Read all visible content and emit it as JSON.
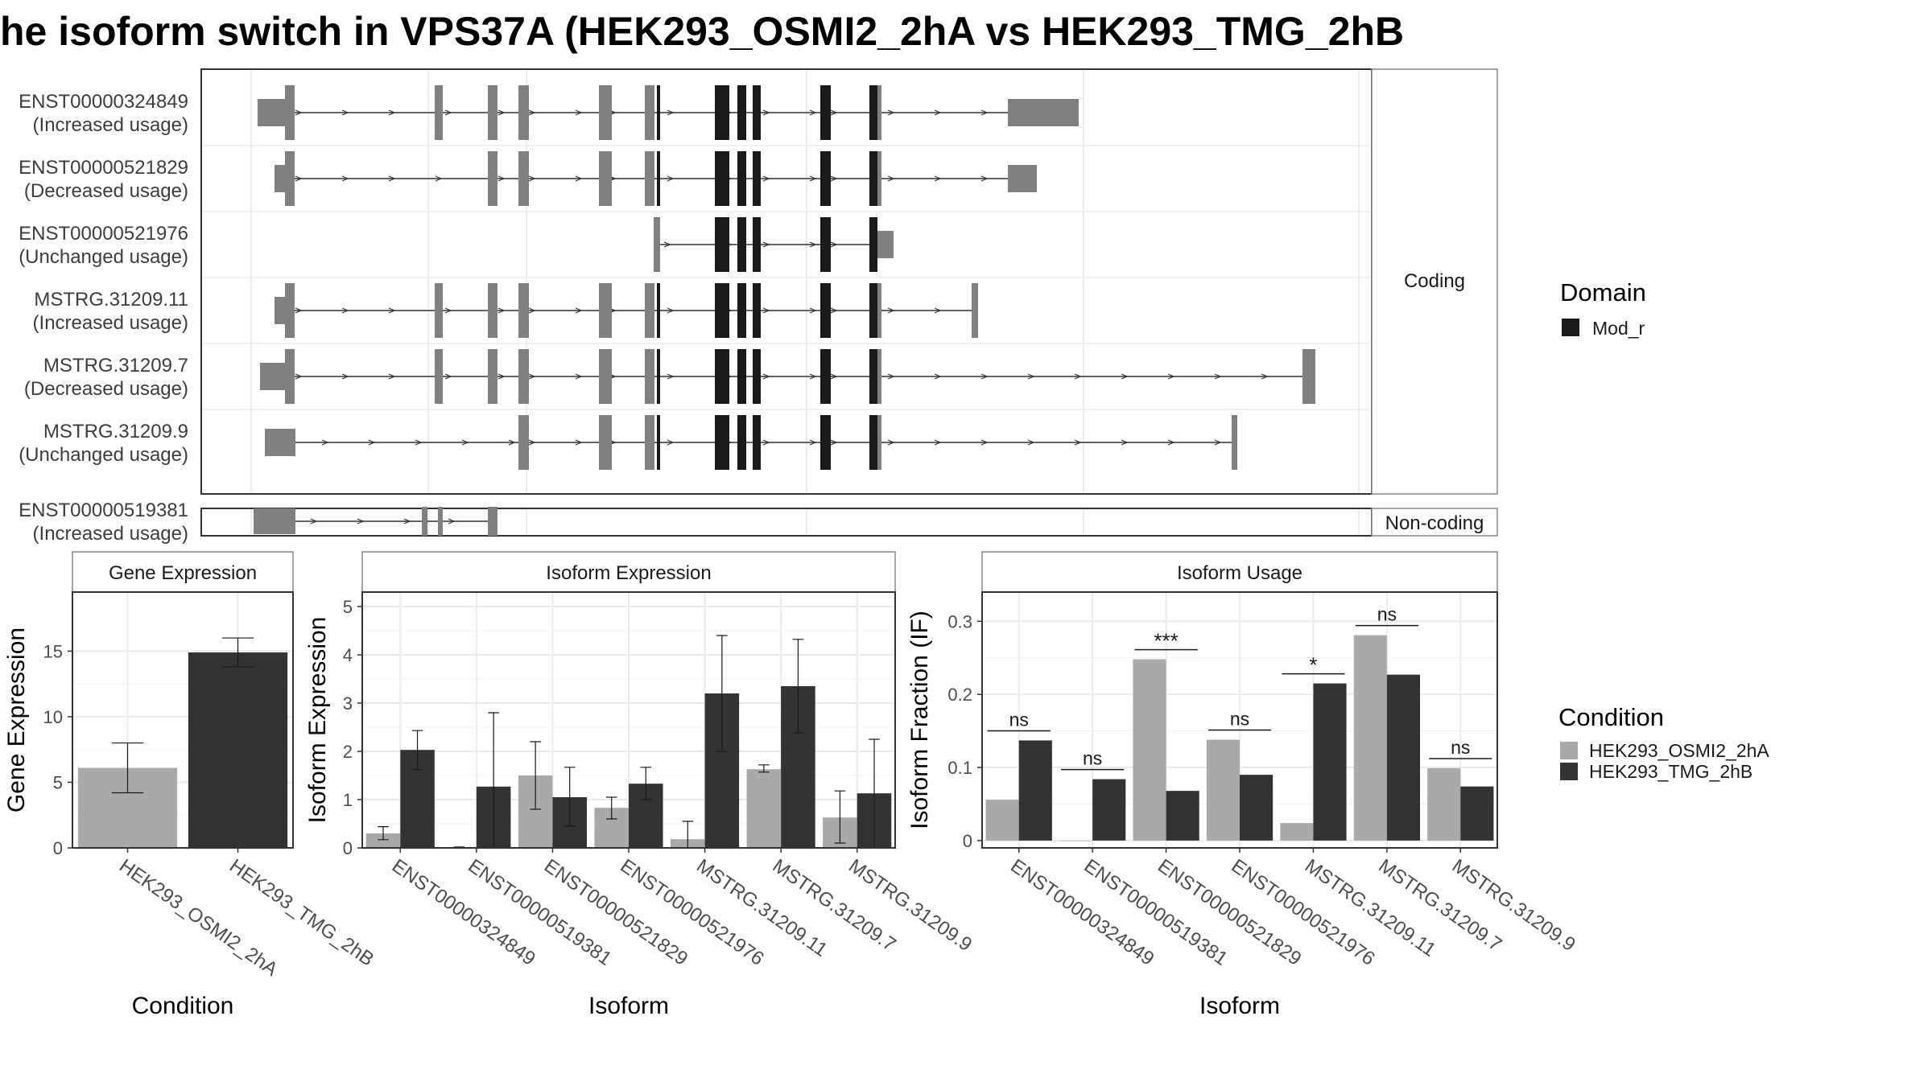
{
  "title": "he isoform switch in VPS37A (HEK293_OSMI2_2hA vs HEK293_TMG_2hB",
  "structure": {
    "coding_strip": "Coding",
    "noncoding_strip": "Non-coding",
    "legend_title": "Domain",
    "legend_item": "Mod_r",
    "colors": {
      "exon": "#808080",
      "domain": "#1a1a1a"
    },
    "isoforms": [
      {
        "name": "ENST00000324849",
        "usage": "(Increased usage)",
        "group": "coding"
      },
      {
        "name": "ENST00000521829",
        "usage": "(Decreased usage)",
        "group": "coding"
      },
      {
        "name": "ENST00000521976",
        "usage": "(Unchanged usage)",
        "group": "coding"
      },
      {
        "name": "MSTRG.31209.11",
        "usage": "(Increased usage)",
        "group": "coding"
      },
      {
        "name": "MSTRG.31209.7",
        "usage": "(Decreased usage)",
        "group": "coding"
      },
      {
        "name": "MSTRG.31209.9",
        "usage": "(Unchanged usage)",
        "group": "coding"
      },
      {
        "name": "ENST00000519381",
        "usage": "(Increased usage)",
        "group": "noncoding"
      }
    ]
  },
  "legend": {
    "title": "Condition",
    "items": [
      "HEK293_OSMI2_2hA",
      "HEK293_TMG_2hB"
    ],
    "colors": [
      "#a9a9a9",
      "#333333"
    ]
  },
  "chart_data": [
    {
      "type": "bar",
      "title": "Gene Expression",
      "xlabel": "Condition",
      "ylabel": "Gene Expression",
      "categories": [
        "HEK293_OSMI2_2hA",
        "HEK293_TMG_2hB"
      ],
      "series": [
        {
          "values": [
            6.1,
            14.9
          ],
          "err_low": [
            4.2,
            13.8
          ],
          "err_high": [
            8.0,
            16.0
          ]
        }
      ],
      "ylim": [
        0,
        19.5
      ],
      "yticks": [
        0,
        5,
        10,
        15
      ]
    },
    {
      "type": "bar",
      "title": "Isoform Expression",
      "xlabel": "Isoform",
      "ylabel": "Isoform Expression",
      "categories": [
        "ENST00000324849",
        "ENST00000519381",
        "ENST00000521829",
        "ENST00000521976",
        "MSTRG.31209.11",
        "MSTRG.31209.7",
        "MSTRG.31209.9"
      ],
      "series": [
        {
          "name": "HEK293_OSMI2_2hA",
          "values": [
            0.3,
            0.0,
            1.5,
            0.83,
            0.18,
            1.63,
            0.63
          ],
          "err_low": [
            0.17,
            0.0,
            0.8,
            0.6,
            0.0,
            1.57,
            0.1
          ],
          "err_high": [
            0.44,
            0.0,
            2.2,
            1.05,
            0.55,
            1.72,
            1.18
          ]
        },
        {
          "name": "HEK293_TMG_2hB",
          "values": [
            2.03,
            1.27,
            1.05,
            1.33,
            3.2,
            3.35,
            1.13
          ],
          "err_low": [
            1.62,
            0.0,
            0.45,
            1.0,
            2.0,
            2.38,
            0.0
          ],
          "err_high": [
            2.43,
            2.8,
            1.67,
            1.67,
            4.4,
            4.32,
            2.25
          ]
        }
      ],
      "ylim": [
        0,
        5.3
      ],
      "yticks": [
        0,
        1,
        2,
        3,
        4,
        5
      ]
    },
    {
      "type": "bar",
      "title": "Isoform Usage",
      "xlabel": "Isoform",
      "ylabel": "Isoform Fraction (IF)",
      "categories": [
        "ENST00000324849",
        "ENST00000519381",
        "ENST00000521829",
        "ENST00000521976",
        "MSTRG.31209.11",
        "MSTRG.31209.7",
        "MSTRG.31209.9"
      ],
      "series": [
        {
          "name": "HEK293_OSMI2_2hA",
          "values": [
            0.056,
            0.0,
            0.248,
            0.138,
            0.024,
            0.281,
            0.099
          ]
        },
        {
          "name": "HEK293_TMG_2hB",
          "values": [
            0.137,
            0.084,
            0.068,
            0.09,
            0.215,
            0.227,
            0.074
          ]
        }
      ],
      "significance": [
        "ns",
        "ns",
        "***",
        "ns",
        "*",
        "ns",
        "ns"
      ],
      "ylim": [
        -0.01,
        0.34
      ],
      "yticks": [
        0.0,
        0.1,
        0.2,
        0.3
      ]
    }
  ]
}
